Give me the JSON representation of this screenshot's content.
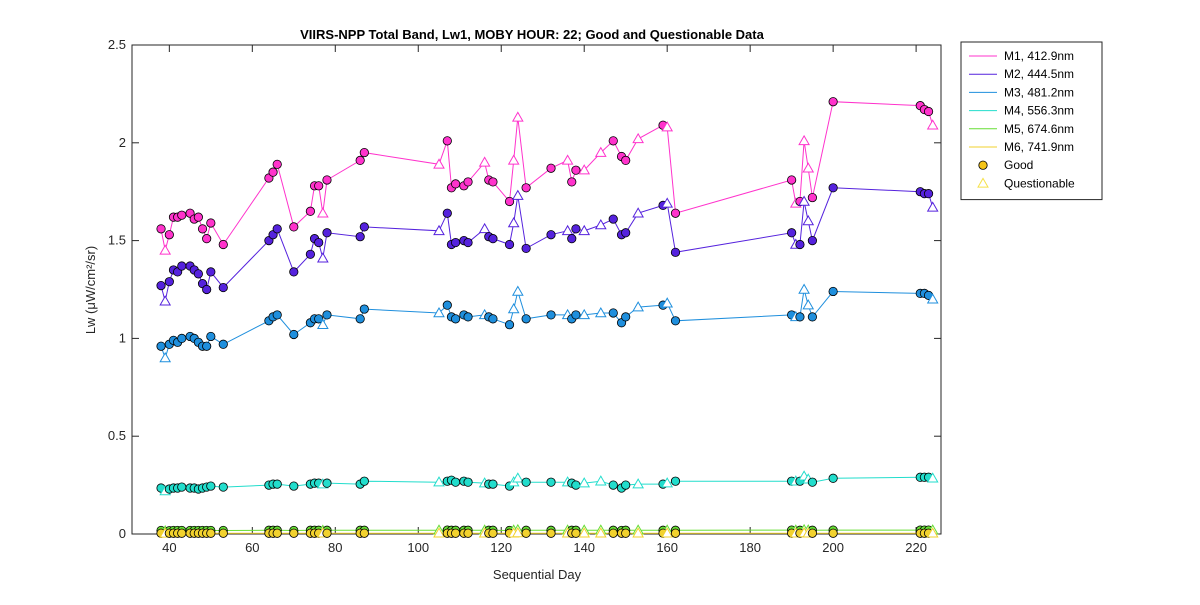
{
  "chart_data": {
    "type": "line",
    "title": "VIIRS-NPP Total Band,  Lw1, MOBY HOUR: 22;  Good and Questionable Data",
    "xlabel": "Sequential Day",
    "ylabel": "Lw (μW/cm²/sr)",
    "xlim": [
      31,
      226
    ],
    "ylim": [
      0,
      2.5
    ],
    "xticks": [
      40,
      60,
      80,
      100,
      120,
      140,
      160,
      180,
      200,
      220
    ],
    "yticks": [
      0,
      0.5,
      1,
      1.5,
      2,
      2.5
    ],
    "ytick_labels": [
      "0",
      "0.5",
      "1",
      "1.5",
      "2",
      "2.5"
    ],
    "grid": false,
    "legend_position": "outside-top-right",
    "x": [
      38,
      39,
      40,
      41,
      42,
      43,
      45,
      46,
      47,
      48,
      49,
      50,
      53,
      64,
      65,
      66,
      70,
      74,
      75,
      76,
      77,
      78,
      86,
      87,
      105,
      107,
      108,
      109,
      111,
      112,
      116,
      117,
      118,
      122,
      123,
      124,
      126,
      132,
      136,
      137,
      138,
      140,
      144,
      147,
      149,
      150,
      153,
      159,
      160,
      162,
      190,
      191,
      192,
      193,
      194,
      195,
      200,
      221,
      222,
      223,
      224
    ],
    "series": [
      {
        "name": "M1, 412.9nm",
        "color": "#ff33cc",
        "values": [
          1.56,
          1.45,
          1.53,
          1.62,
          1.62,
          1.63,
          1.64,
          1.61,
          1.62,
          1.56,
          1.51,
          1.59,
          1.48,
          1.82,
          1.85,
          1.89,
          1.57,
          1.65,
          1.78,
          1.78,
          1.64,
          1.81,
          1.91,
          1.95,
          1.89,
          2.01,
          1.77,
          1.79,
          1.78,
          1.8,
          1.9,
          1.81,
          1.8,
          1.7,
          1.91,
          2.13,
          1.77,
          1.87,
          1.91,
          1.8,
          1.86,
          1.86,
          1.95,
          2.01,
          1.93,
          1.91,
          2.02,
          2.09,
          2.08,
          1.64,
          1.81,
          1.69,
          1.7,
          2.01,
          1.87,
          1.72,
          2.21,
          2.19,
          2.17,
          2.16,
          2.09
        ],
        "quality": [
          "G",
          "Q",
          "G",
          "G",
          "G",
          "G",
          "G",
          "G",
          "G",
          "G",
          "G",
          "G",
          "G",
          "G",
          "G",
          "G",
          "G",
          "G",
          "G",
          "G",
          "Q",
          "G",
          "G",
          "G",
          "Q",
          "G",
          "G",
          "G",
          "G",
          "G",
          "Q",
          "G",
          "G",
          "G",
          "Q",
          "Q",
          "G",
          "G",
          "Q",
          "G",
          "G",
          "Q",
          "Q",
          "G",
          "G",
          "G",
          "Q",
          "G",
          "Q",
          "G",
          "G",
          "Q",
          "G",
          "Q",
          "Q",
          "G",
          "G",
          "G",
          "G",
          "G",
          "Q"
        ]
      },
      {
        "name": "M2, 444.5nm",
        "color": "#5522dd",
        "values": [
          1.27,
          1.19,
          1.29,
          1.35,
          1.34,
          1.37,
          1.37,
          1.35,
          1.33,
          1.28,
          1.25,
          1.34,
          1.26,
          1.5,
          1.53,
          1.56,
          1.34,
          1.43,
          1.51,
          1.49,
          1.41,
          1.54,
          1.52,
          1.57,
          1.55,
          1.64,
          1.48,
          1.49,
          1.5,
          1.49,
          1.56,
          1.52,
          1.51,
          1.48,
          1.59,
          1.73,
          1.46,
          1.53,
          1.55,
          1.51,
          1.56,
          1.55,
          1.58,
          1.61,
          1.53,
          1.54,
          1.64,
          1.68,
          1.69,
          1.44,
          1.54,
          1.48,
          1.48,
          1.7,
          1.6,
          1.5,
          1.77,
          1.75,
          1.74,
          1.74,
          1.67
        ],
        "quality": [
          "G",
          "Q",
          "G",
          "G",
          "G",
          "G",
          "G",
          "G",
          "G",
          "G",
          "G",
          "G",
          "G",
          "G",
          "G",
          "G",
          "G",
          "G",
          "G",
          "G",
          "Q",
          "G",
          "G",
          "G",
          "Q",
          "G",
          "G",
          "G",
          "G",
          "G",
          "Q",
          "G",
          "G",
          "G",
          "Q",
          "Q",
          "G",
          "G",
          "Q",
          "G",
          "G",
          "Q",
          "Q",
          "G",
          "G",
          "G",
          "Q",
          "G",
          "Q",
          "G",
          "G",
          "Q",
          "G",
          "Q",
          "Q",
          "G",
          "G",
          "G",
          "G",
          "G",
          "Q"
        ]
      },
      {
        "name": "M3, 481.2nm",
        "color": "#1f8fdd",
        "values": [
          0.96,
          0.9,
          0.97,
          0.99,
          0.98,
          1.0,
          1.01,
          1.0,
          0.98,
          0.96,
          0.96,
          1.01,
          0.97,
          1.09,
          1.11,
          1.12,
          1.02,
          1.08,
          1.1,
          1.1,
          1.07,
          1.12,
          1.1,
          1.15,
          1.13,
          1.17,
          1.11,
          1.1,
          1.12,
          1.11,
          1.12,
          1.11,
          1.1,
          1.07,
          1.15,
          1.24,
          1.1,
          1.12,
          1.12,
          1.1,
          1.12,
          1.12,
          1.13,
          1.13,
          1.08,
          1.11,
          1.16,
          1.17,
          1.18,
          1.09,
          1.12,
          1.11,
          1.11,
          1.25,
          1.17,
          1.11,
          1.24,
          1.23,
          1.23,
          1.22,
          1.2
        ],
        "quality": [
          "G",
          "Q",
          "G",
          "G",
          "G",
          "G",
          "G",
          "G",
          "G",
          "G",
          "G",
          "G",
          "G",
          "G",
          "G",
          "G",
          "G",
          "G",
          "G",
          "G",
          "Q",
          "G",
          "G",
          "G",
          "Q",
          "G",
          "G",
          "G",
          "G",
          "G",
          "Q",
          "G",
          "G",
          "G",
          "Q",
          "Q",
          "G",
          "G",
          "Q",
          "G",
          "G",
          "Q",
          "Q",
          "G",
          "G",
          "G",
          "Q",
          "G",
          "Q",
          "G",
          "G",
          "Q",
          "G",
          "Q",
          "Q",
          "G",
          "G",
          "G",
          "G",
          "G",
          "Q"
        ]
      },
      {
        "name": "M4, 556.3nm",
        "color": "#22ddcc",
        "values": [
          0.235,
          0.22,
          0.23,
          0.235,
          0.235,
          0.24,
          0.235,
          0.235,
          0.23,
          0.235,
          0.24,
          0.245,
          0.24,
          0.25,
          0.255,
          0.255,
          0.245,
          0.255,
          0.26,
          0.26,
          0.255,
          0.26,
          0.255,
          0.27,
          0.265,
          0.27,
          0.275,
          0.265,
          0.27,
          0.265,
          0.26,
          0.255,
          0.255,
          0.245,
          0.265,
          0.285,
          0.265,
          0.265,
          0.265,
          0.26,
          0.25,
          0.26,
          0.27,
          0.25,
          0.235,
          0.25,
          0.255,
          0.255,
          0.26,
          0.27,
          0.27,
          0.27,
          0.27,
          0.295,
          0.28,
          0.265,
          0.285,
          0.29,
          0.29,
          0.29,
          0.285
        ],
        "quality": [
          "G",
          "Q",
          "G",
          "G",
          "G",
          "G",
          "G",
          "G",
          "G",
          "G",
          "G",
          "G",
          "G",
          "G",
          "G",
          "G",
          "G",
          "G",
          "G",
          "G",
          "Q",
          "G",
          "G",
          "G",
          "Q",
          "G",
          "G",
          "G",
          "G",
          "G",
          "Q",
          "G",
          "G",
          "G",
          "Q",
          "Q",
          "G",
          "G",
          "Q",
          "G",
          "G",
          "Q",
          "Q",
          "G",
          "G",
          "G",
          "Q",
          "G",
          "Q",
          "G",
          "G",
          "Q",
          "G",
          "Q",
          "Q",
          "G",
          "G",
          "G",
          "G",
          "G",
          "Q"
        ]
      },
      {
        "name": "M5, 674.6nm",
        "color": "#66dd33",
        "values": [
          0.018,
          0.015,
          0.017,
          0.018,
          0.018,
          0.018,
          0.018,
          0.018,
          0.018,
          0.018,
          0.018,
          0.018,
          0.018,
          0.019,
          0.019,
          0.019,
          0.018,
          0.019,
          0.019,
          0.019,
          0.018,
          0.019,
          0.019,
          0.019,
          0.019,
          0.02,
          0.019,
          0.019,
          0.019,
          0.019,
          0.019,
          0.019,
          0.019,
          0.018,
          0.019,
          0.021,
          0.019,
          0.019,
          0.019,
          0.019,
          0.019,
          0.019,
          0.019,
          0.019,
          0.018,
          0.019,
          0.019,
          0.019,
          0.019,
          0.019,
          0.02,
          0.019,
          0.019,
          0.021,
          0.02,
          0.019,
          0.02,
          0.02,
          0.02,
          0.02,
          0.02
        ],
        "quality": [
          "G",
          "Q",
          "G",
          "G",
          "G",
          "G",
          "G",
          "G",
          "G",
          "G",
          "G",
          "G",
          "G",
          "G",
          "G",
          "G",
          "G",
          "G",
          "G",
          "G",
          "Q",
          "G",
          "G",
          "G",
          "Q",
          "G",
          "G",
          "G",
          "G",
          "G",
          "Q",
          "G",
          "G",
          "G",
          "Q",
          "Q",
          "G",
          "G",
          "Q",
          "G",
          "G",
          "Q",
          "Q",
          "G",
          "G",
          "G",
          "Q",
          "G",
          "Q",
          "G",
          "G",
          "Q",
          "G",
          "Q",
          "Q",
          "G",
          "G",
          "G",
          "G",
          "G",
          "Q"
        ]
      },
      {
        "name": "M6, 741.9nm",
        "color": "#f2d22e",
        "values": [
          0.004,
          0.003,
          0.004,
          0.004,
          0.004,
          0.004,
          0.004,
          0.004,
          0.004,
          0.004,
          0.004,
          0.004,
          0.004,
          0.004,
          0.004,
          0.004,
          0.004,
          0.004,
          0.004,
          0.004,
          0.004,
          0.004,
          0.004,
          0.004,
          0.004,
          0.004,
          0.004,
          0.004,
          0.004,
          0.004,
          0.004,
          0.004,
          0.004,
          0.004,
          0.004,
          0.005,
          0.004,
          0.004,
          0.004,
          0.004,
          0.004,
          0.004,
          0.004,
          0.004,
          0.004,
          0.004,
          0.004,
          0.004,
          0.004,
          0.004,
          0.004,
          0.004,
          0.004,
          0.005,
          0.004,
          0.004,
          0.004,
          0.004,
          0.004,
          0.004,
          0.004
        ],
        "quality": [
          "G",
          "Q",
          "G",
          "G",
          "G",
          "G",
          "G",
          "G",
          "G",
          "G",
          "G",
          "G",
          "G",
          "G",
          "G",
          "G",
          "G",
          "G",
          "G",
          "G",
          "Q",
          "G",
          "G",
          "G",
          "Q",
          "G",
          "G",
          "G",
          "G",
          "G",
          "Q",
          "G",
          "G",
          "G",
          "Q",
          "Q",
          "G",
          "G",
          "Q",
          "G",
          "G",
          "Q",
          "Q",
          "G",
          "G",
          "G",
          "Q",
          "G",
          "Q",
          "G",
          "G",
          "Q",
          "G",
          "Q",
          "Q",
          "G",
          "G",
          "G",
          "G",
          "G",
          "Q"
        ]
      }
    ],
    "marker_legend": [
      {
        "name": "Good",
        "marker": "circle",
        "color": "#f5c518"
      },
      {
        "name": "Questionable",
        "marker": "triangle",
        "color": "#f5e14a"
      }
    ]
  }
}
